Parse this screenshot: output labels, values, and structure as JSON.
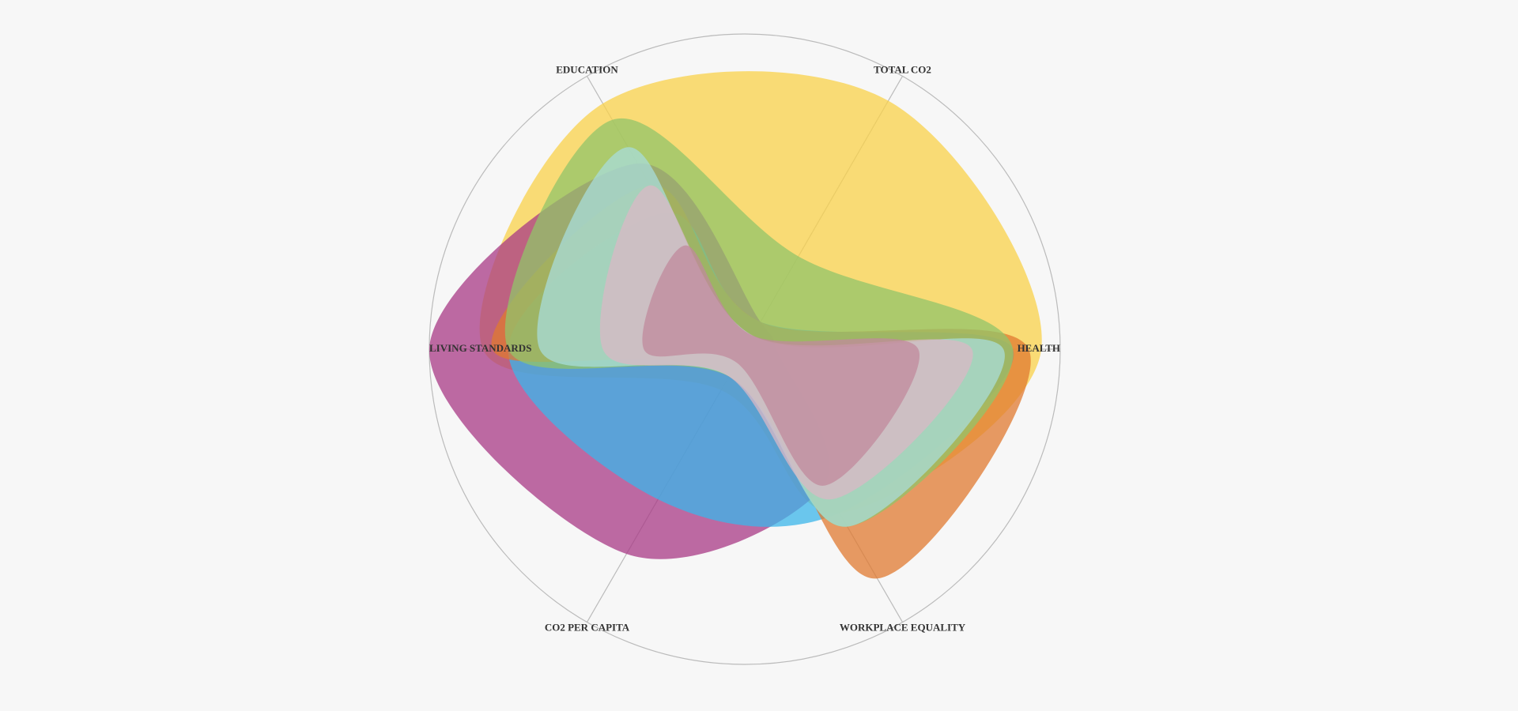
{
  "chart_data": {
    "type": "radar",
    "curve": "smooth",
    "fill_opacity": 0.75,
    "categories": [
      "HEALTH",
      "WORKPLACE EQUALITY",
      "CO2 PER CAPITA",
      "LIVING STANDARDS",
      "EDUCATION",
      "TOTAL CO2"
    ],
    "rlim": [
      0,
      1
    ],
    "series": [
      {
        "color": "#f9d24a",
        "values": [
          0.94,
          0.6,
          0.15,
          0.83,
          0.9,
          0.91
        ]
      },
      {
        "color": "#a83a86",
        "values": [
          0.1,
          0.5,
          0.75,
          1.0,
          0.68,
          0.1
        ]
      },
      {
        "color": "#3bb5ea",
        "values": [
          0.85,
          0.6,
          0.55,
          0.75,
          0.5,
          0.1
        ]
      },
      {
        "color": "#e07a30",
        "values": [
          0.9,
          0.84,
          0.1,
          0.8,
          0.6,
          0.1
        ]
      },
      {
        "color": "#92c46a",
        "values": [
          0.85,
          0.65,
          0.1,
          0.75,
          0.84,
          0.34
        ]
      },
      {
        "color": "#a8dcd9",
        "values": [
          0.82,
          0.65,
          0.1,
          0.65,
          0.74,
          0.05
        ]
      },
      {
        "color": "#d9b8c6",
        "values": [
          0.72,
          0.55,
          0.1,
          0.45,
          0.6,
          0.05
        ]
      },
      {
        "color": "#c08a9c",
        "values": [
          0.55,
          0.5,
          0.05,
          0.32,
          0.38,
          0.05
        ]
      }
    ]
  }
}
